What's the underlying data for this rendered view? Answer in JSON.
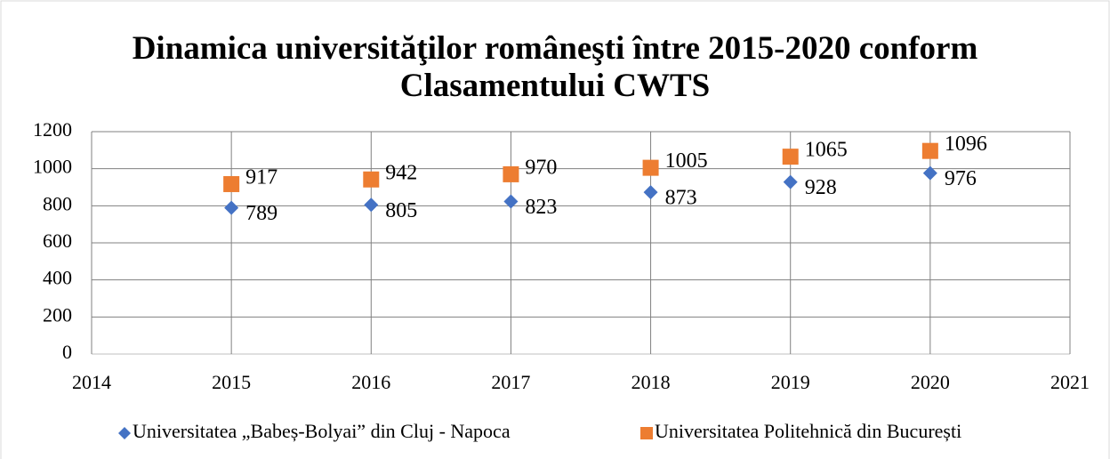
{
  "chart_data": {
    "type": "scatter",
    "title": "Dinamica universităţilor româneşti între 2015-2020 conform Clasamentului CWTS",
    "x": [
      2015,
      2016,
      2017,
      2018,
      2019,
      2020
    ],
    "series": [
      {
        "name": "Universitatea „Babeș-Bolyai” din Cluj - Napoca",
        "color": "#4472c4",
        "marker": "diamond",
        "values": [
          789,
          805,
          823,
          873,
          928,
          976
        ]
      },
      {
        "name": "Universitatea Politehnică din București",
        "color": "#ed7d31",
        "marker": "square",
        "values": [
          917,
          942,
          970,
          1005,
          1065,
          1096
        ]
      }
    ],
    "xlim": [
      2014,
      2021
    ],
    "xticks": [
      2014,
      2015,
      2016,
      2017,
      2018,
      2019,
      2020,
      2021
    ],
    "ylim": [
      0,
      1200
    ],
    "yticks": [
      0,
      200,
      400,
      600,
      800,
      1000,
      1200
    ],
    "grid": true,
    "legend": "bottom"
  }
}
